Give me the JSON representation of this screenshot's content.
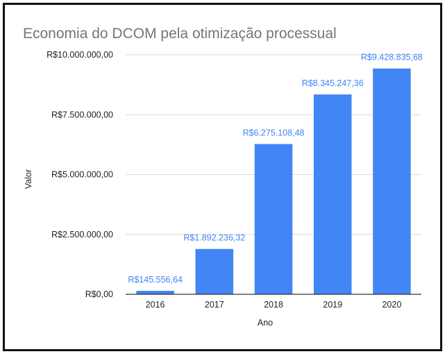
{
  "chart_data": {
    "type": "bar",
    "title": "Economia do DCOM pela otimização processual",
    "xlabel": "Ano",
    "ylabel": "Valor",
    "categories": [
      "2016",
      "2017",
      "2018",
      "2019",
      "2020"
    ],
    "values": [
      145556.64,
      1892236.32,
      6275108.48,
      8345247.36,
      9428835.68
    ],
    "data_labels": [
      "R$145.556,64",
      "R$1.892.236,32",
      "R$6.275.108,48",
      "R$8.345.247,36",
      "R$9.428.835,68"
    ],
    "ylim": [
      0,
      10000000
    ],
    "yticks": [
      0,
      2500000,
      5000000,
      7500000,
      10000000
    ],
    "ytick_labels": [
      "R$0,00",
      "R$2.500.000,00",
      "R$5.000.000,00",
      "R$7.500.000,00",
      "R$10.000.000,00"
    ],
    "grid": true,
    "legend": "none",
    "bar_color": "#4285f4",
    "label_color": "#4285f4"
  }
}
